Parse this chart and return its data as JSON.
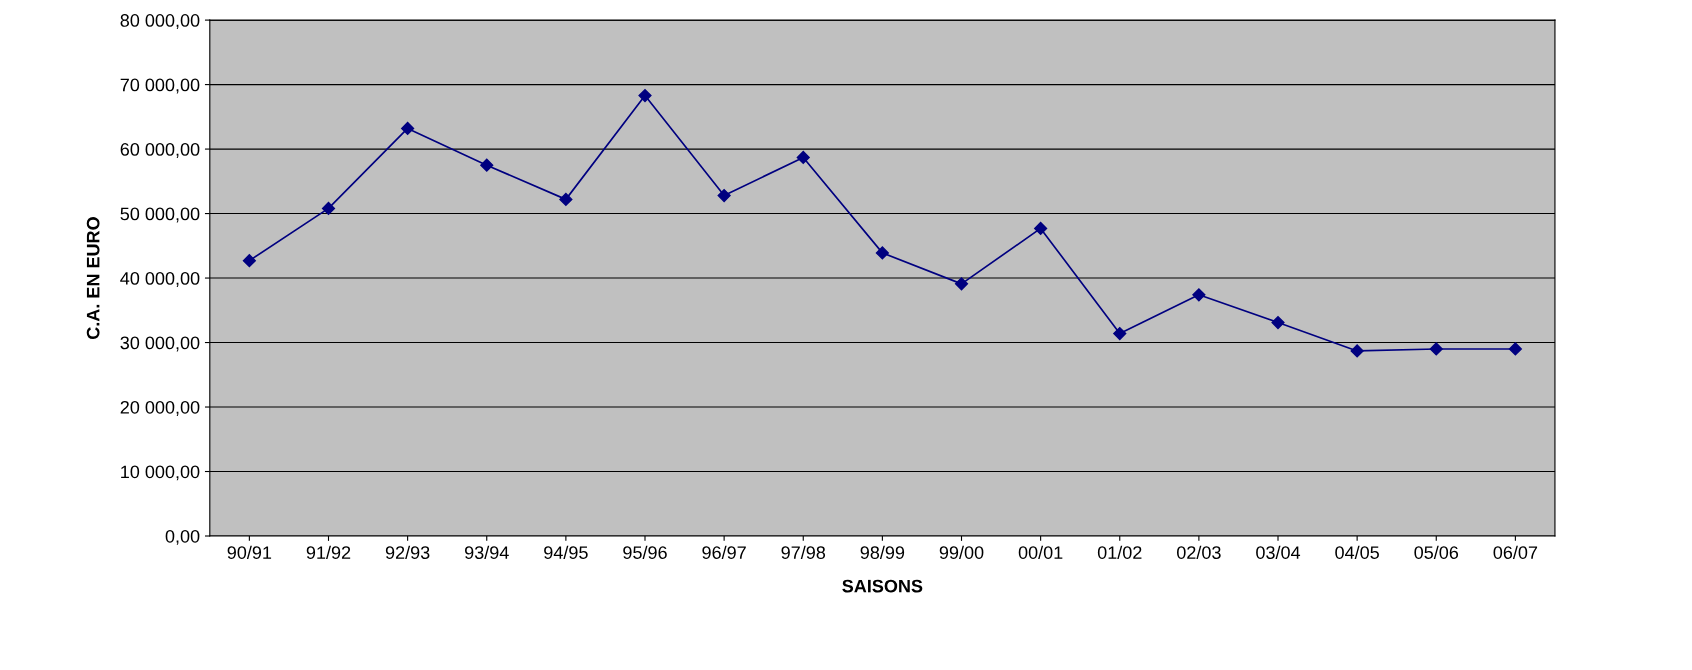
{
  "chart_data": {
    "type": "line",
    "xlabel": "SAISONS",
    "ylabel": "C.A. EN EURO",
    "categories": [
      "90/91",
      "91/92",
      "92/93",
      "93/94",
      "94/95",
      "95/96",
      "96/97",
      "97/98",
      "98/99",
      "99/00",
      "00/01",
      "01/02",
      "02/03",
      "03/04",
      "04/05",
      "05/06",
      "06/07"
    ],
    "series": [
      {
        "color": "#000080",
        "values": [
          42700,
          50800,
          63200,
          57500,
          52200,
          68300,
          52800,
          58700,
          43900,
          39100,
          47700,
          31400,
          37400,
          33100,
          28700,
          29000,
          29000
        ]
      }
    ],
    "ylim": [
      0,
      80000
    ],
    "yticks": [
      {
        "value": 0,
        "label": "0,00"
      },
      {
        "value": 10000,
        "label": "10 000,00"
      },
      {
        "value": 20000,
        "label": "20 000,00"
      },
      {
        "value": 30000,
        "label": "30 000,00"
      },
      {
        "value": 40000,
        "label": "40 000,00"
      },
      {
        "value": 50000,
        "label": "50 000,00"
      },
      {
        "value": 60000,
        "label": "60 000,00"
      },
      {
        "value": 70000,
        "label": "70 000,00"
      },
      {
        "value": 80000,
        "label": "80 000,00"
      }
    ],
    "grid": "y",
    "legend": false,
    "marker": "diamond",
    "line_style": "solid"
  }
}
